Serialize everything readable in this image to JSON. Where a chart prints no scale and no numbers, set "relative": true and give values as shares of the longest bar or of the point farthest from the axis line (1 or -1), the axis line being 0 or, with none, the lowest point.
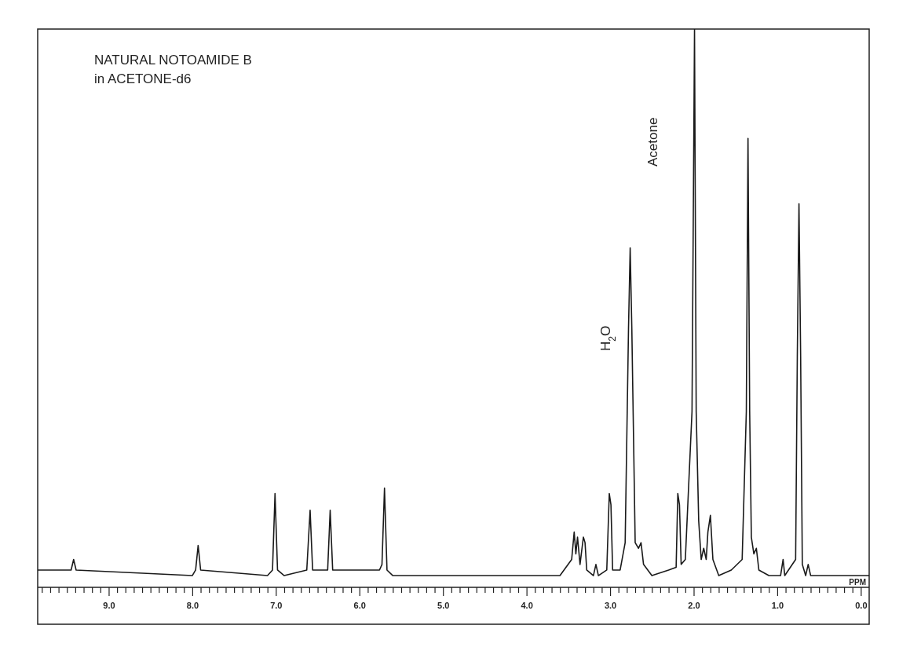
{
  "chart_data": {
    "type": "line",
    "title": "NATURAL NOTOAMIDE B",
    "subtitle": "in ACETONE-d6",
    "xlabel": "PPM",
    "relative": true,
    "tick_labels": "x",
    "xlim": [
      9.85,
      -0.1
    ],
    "xticks": [
      {
        "value": 9,
        "label": "9.0"
      },
      {
        "value": 8,
        "label": "8.0"
      },
      {
        "value": 7,
        "label": "7.0"
      },
      {
        "value": 6,
        "label": "6.0"
      },
      {
        "value": 5,
        "label": "5.0"
      },
      {
        "value": 4,
        "label": "4.0"
      },
      {
        "value": 3,
        "label": "3.0"
      },
      {
        "value": 2,
        "label": "2.0"
      },
      {
        "value": 1,
        "label": "1.0"
      },
      {
        "value": 0,
        "label": "0.0"
      },
      {
        "value": 9.8,
        "label": null
      },
      {
        "value": 9.7,
        "label": null
      },
      {
        "value": 9.6,
        "label": null
      },
      {
        "value": 9.5,
        "label": null
      },
      {
        "value": 9.4,
        "label": null
      },
      {
        "value": 9.3,
        "label": null
      },
      {
        "value": 9.2,
        "label": null
      },
      {
        "value": 9.1,
        "label": null
      },
      {
        "value": 8.9,
        "label": null
      },
      {
        "value": 8.8,
        "label": null
      },
      {
        "value": 8.7,
        "label": null
      },
      {
        "value": 8.6,
        "label": null
      },
      {
        "value": 8.5,
        "label": null
      },
      {
        "value": 8.4,
        "label": null
      },
      {
        "value": 8.3,
        "label": null
      },
      {
        "value": 8.2,
        "label": null
      },
      {
        "value": 8.1,
        "label": null
      },
      {
        "value": 7.9,
        "label": null
      },
      {
        "value": 7.8,
        "label": null
      },
      {
        "value": 7.7,
        "label": null
      },
      {
        "value": 7.6,
        "label": null
      },
      {
        "value": 7.5,
        "label": null
      },
      {
        "value": 7.4,
        "label": null
      },
      {
        "value": 7.3,
        "label": null
      },
      {
        "value": 7.2,
        "label": null
      },
      {
        "value": 7.1,
        "label": null
      },
      {
        "value": 6.9,
        "label": null
      },
      {
        "value": 6.8,
        "label": null
      },
      {
        "value": 6.7,
        "label": null
      },
      {
        "value": 6.6,
        "label": null
      },
      {
        "value": 6.5,
        "label": null
      },
      {
        "value": 6.4,
        "label": null
      },
      {
        "value": 6.3,
        "label": null
      },
      {
        "value": 6.2,
        "label": null
      },
      {
        "value": 6.1,
        "label": null
      },
      {
        "value": 5.9,
        "label": null
      },
      {
        "value": 5.8,
        "label": null
      },
      {
        "value": 5.7,
        "label": null
      },
      {
        "value": 5.6,
        "label": null
      },
      {
        "value": 5.5,
        "label": null
      },
      {
        "value": 5.4,
        "label": null
      },
      {
        "value": 5.3,
        "label": null
      },
      {
        "value": 5.2,
        "label": null
      },
      {
        "value": 5.1,
        "label": null
      },
      {
        "value": 4.9,
        "label": null
      },
      {
        "value": 4.8,
        "label": null
      },
      {
        "value": 4.7,
        "label": null
      },
      {
        "value": 4.6,
        "label": null
      },
      {
        "value": 4.5,
        "label": null
      },
      {
        "value": 4.4,
        "label": null
      },
      {
        "value": 4.3,
        "label": null
      },
      {
        "value": 4.2,
        "label": null
      },
      {
        "value": 4.1,
        "label": null
      },
      {
        "value": 3.9,
        "label": null
      },
      {
        "value": 3.8,
        "label": null
      },
      {
        "value": 3.7,
        "label": null
      },
      {
        "value": 3.6,
        "label": null
      },
      {
        "value": 3.5,
        "label": null
      },
      {
        "value": 3.4,
        "label": null
      },
      {
        "value": 3.3,
        "label": null
      },
      {
        "value": 3.2,
        "label": null
      },
      {
        "value": 3.1,
        "label": null
      },
      {
        "value": 2.9,
        "label": null
      },
      {
        "value": 2.8,
        "label": null
      },
      {
        "value": 2.7,
        "label": null
      },
      {
        "value": 2.6,
        "label": null
      },
      {
        "value": 2.5,
        "label": null
      },
      {
        "value": 2.4,
        "label": null
      },
      {
        "value": 2.3,
        "label": null
      },
      {
        "value": 2.2,
        "label": null
      },
      {
        "value": 2.1,
        "label": null
      },
      {
        "value": 1.9,
        "label": null
      },
      {
        "value": 1.8,
        "label": null
      },
      {
        "value": 1.7,
        "label": null
      },
      {
        "value": 1.6,
        "label": null
      },
      {
        "value": 1.5,
        "label": null
      },
      {
        "value": 1.4,
        "label": null
      },
      {
        "value": 1.3,
        "label": null
      },
      {
        "value": 1.2,
        "label": null
      },
      {
        "value": 1.1,
        "label": null
      },
      {
        "value": 0.9,
        "label": null
      },
      {
        "value": 0.8,
        "label": null
      },
      {
        "value": 0.7,
        "label": null
      },
      {
        "value": 0.6,
        "label": null
      },
      {
        "value": 0.5,
        "label": null
      },
      {
        "value": 0.4,
        "label": null
      },
      {
        "value": 0.3,
        "label": null
      },
      {
        "value": 0.2,
        "label": null
      },
      {
        "value": 0.1,
        "label": null
      }
    ],
    "annotations": [
      "H$_{2}$O",
      "Acetone"
    ],
    "series": [
      {
        "color": "#1a1a1a",
        "x": [
          9.85,
          9.45,
          9.42,
          9.39,
          8.0,
          7.96,
          7.93,
          7.9,
          7.1,
          7.04,
          7.01,
          6.98,
          6.9,
          6.63,
          6.59,
          6.56,
          6.38,
          6.35,
          6.32,
          5.76,
          5.73,
          5.7,
          5.67,
          5.6,
          4.7,
          3.6,
          3.46,
          3.43,
          3.41,
          3.39,
          3.36,
          3.32,
          3.3,
          3.28,
          3.2,
          3.17,
          3.14,
          3.04,
          3.01,
          2.99,
          2.97,
          2.88,
          2.82,
          2.78,
          2.76,
          2.74,
          2.7,
          2.66,
          2.63,
          2.6,
          2.5,
          2.3,
          2.21,
          2.19,
          2.17,
          2.15,
          2.1,
          2.02,
          1.99,
          1.97,
          1.94,
          1.91,
          1.88,
          1.85,
          1.83,
          1.8,
          1.77,
          1.7,
          1.55,
          1.42,
          1.37,
          1.35,
          1.33,
          1.31,
          1.28,
          1.25,
          1.22,
          1.1,
          0.96,
          0.93,
          0.91,
          0.78,
          0.76,
          0.74,
          0.72,
          0.7,
          0.66,
          0.63,
          0.6,
          -0.1
        ],
        "values": [
          0.031,
          0.031,
          0.05,
          0.031,
          0.021,
          0.031,
          0.075,
          0.031,
          0.021,
          0.031,
          0.168,
          0.031,
          0.021,
          0.031,
          0.138,
          0.031,
          0.031,
          0.138,
          0.031,
          0.031,
          0.041,
          0.178,
          0.031,
          0.021,
          0.021,
          0.021,
          0.05,
          0.099,
          0.06,
          0.09,
          0.041,
          0.09,
          0.08,
          0.031,
          0.021,
          0.041,
          0.021,
          0.031,
          0.168,
          0.148,
          0.031,
          0.031,
          0.08,
          0.462,
          0.608,
          0.462,
          0.08,
          0.07,
          0.08,
          0.041,
          0.021,
          0.031,
          0.036,
          0.168,
          0.148,
          0.041,
          0.05,
          0.315,
          1,
          0.315,
          0.119,
          0.05,
          0.07,
          0.05,
          0.099,
          0.129,
          0.05,
          0.021,
          0.031,
          0.05,
          0.315,
          0.804,
          0.315,
          0.09,
          0.06,
          0.07,
          0.031,
          0.021,
          0.021,
          0.05,
          0.021,
          0.05,
          0.413,
          0.687,
          0.413,
          0.041,
          0.021,
          0.041,
          0.021,
          0.021
        ]
      }
    ]
  }
}
